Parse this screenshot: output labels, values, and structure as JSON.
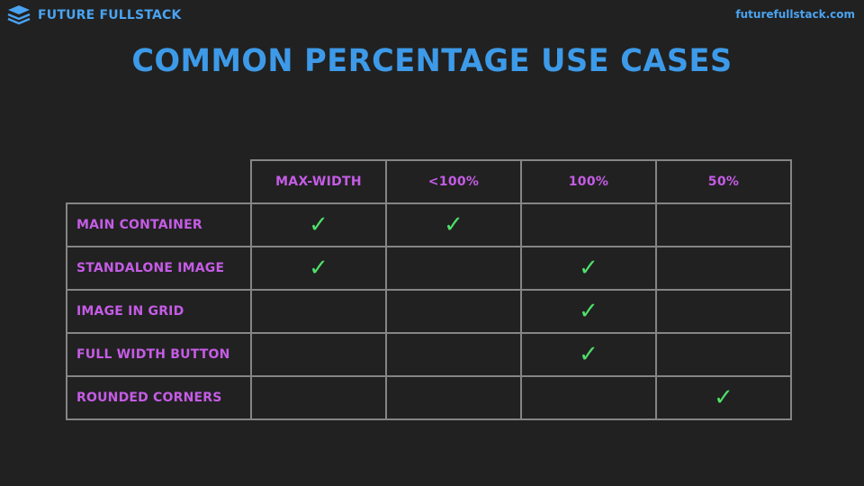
{
  "brand": {
    "name": "FUTURE FULLSTACK",
    "icon": "layers-stack-icon",
    "color": "#4aa3f0"
  },
  "site_url": "futurefullstack.com",
  "title": "Common Percentage Use Cases",
  "table": {
    "columns": [
      "Max-Width",
      "<100%",
      "100%",
      "50%"
    ],
    "rows": [
      {
        "label": "Main Container",
        "checks": [
          true,
          true,
          false,
          false
        ]
      },
      {
        "label": "Standalone Image",
        "checks": [
          true,
          false,
          true,
          false
        ]
      },
      {
        "label": "Image in Grid",
        "checks": [
          false,
          false,
          true,
          false
        ]
      },
      {
        "label": "Full Width Button",
        "checks": [
          false,
          false,
          true,
          false
        ]
      },
      {
        "label": "Rounded Corners",
        "checks": [
          false,
          false,
          false,
          true
        ]
      }
    ],
    "check_mark": "✓",
    "check_icon": "checkmark-icon"
  },
  "colors": {
    "background": "#212121",
    "title": "#3d9ae8",
    "labels": "#c55ce6",
    "check": "#4ee06a",
    "grid": "#858585"
  }
}
